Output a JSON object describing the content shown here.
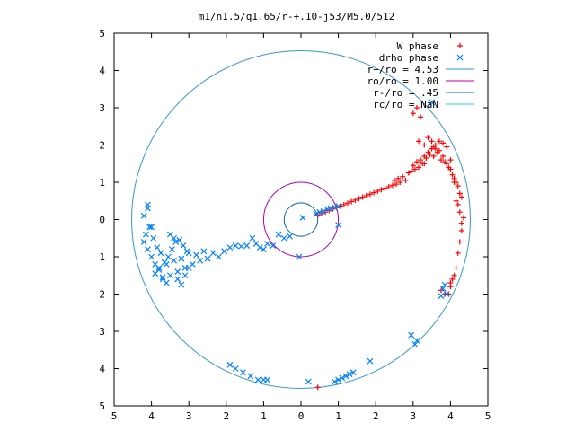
{
  "chart_data": {
    "type": "scatter",
    "title": "m1/n1.5/q1.65/r-+.10-j53/M5.0/512",
    "xlim": [
      -5,
      5
    ],
    "ylim": [
      -5,
      5
    ],
    "x_tick_labels": [
      "5",
      "4",
      "3",
      "2",
      "1",
      "0",
      "1",
      "2",
      "3",
      "4",
      "5"
    ],
    "y_tick_labels": [
      "5",
      "4",
      "3",
      "2",
      "1",
      "0",
      "1",
      "2",
      "3",
      "4",
      "5"
    ],
    "grid": false,
    "legend_position": "top-right",
    "colors": {
      "w_phase": "#ff0000",
      "drho_phase": "#0080ff",
      "r_plus": "#3399cc",
      "ro": "#b000b0",
      "r_minus": "#1060c0",
      "rc": "#33cccc"
    },
    "series": [
      {
        "name": "W phase",
        "marker": "plus",
        "color": "#ff0000",
        "x": [
          0.45,
          0.55,
          0.65,
          0.75,
          0.85,
          0.95,
          1.05,
          1.15,
          1.25,
          1.35,
          1.45,
          1.55,
          1.65,
          1.75,
          1.85,
          1.95,
          2.05,
          2.15,
          2.25,
          2.35,
          2.45,
          2.5,
          2.55,
          2.6,
          2.65,
          2.72,
          2.8,
          2.88,
          2.95,
          3.0,
          3.05,
          3.1,
          3.15,
          3.2,
          3.25,
          3.3,
          3.35,
          3.4,
          3.45,
          3.5,
          3.55,
          3.6,
          3.65,
          3.7,
          3.75,
          3.8,
          3.85,
          3.9,
          3.95,
          4.0,
          4.05,
          4.1,
          4.15,
          4.2,
          4.25,
          4.3,
          3.0,
          3.1,
          3.2,
          3.15,
          3.3,
          3.4,
          3.5,
          3.6,
          3.3,
          3.45,
          3.55,
          3.7,
          3.8,
          3.9,
          4.0,
          4.1,
          4.15,
          4.2,
          4.25,
          4.3,
          4.35,
          4.3,
          4.25,
          4.2,
          4.15,
          4.05,
          4.0,
          3.95,
          3.85,
          3.75,
          4.1,
          4.0,
          0.45
        ],
        "y": [
          0.12,
          0.16,
          0.2,
          0.24,
          0.28,
          0.32,
          0.36,
          0.4,
          0.44,
          0.48,
          0.52,
          0.56,
          0.6,
          0.64,
          0.68,
          0.72,
          0.76,
          0.8,
          0.84,
          0.88,
          0.92,
          1.05,
          0.95,
          1.1,
          1.0,
          1.15,
          1.05,
          1.25,
          1.3,
          1.45,
          1.35,
          1.55,
          1.4,
          1.6,
          1.5,
          1.7,
          1.65,
          1.8,
          1.75,
          1.9,
          1.7,
          2.0,
          1.8,
          1.85,
          1.6,
          1.7,
          1.55,
          1.5,
          1.4,
          1.35,
          1.2,
          1.1,
          1.0,
          0.9,
          0.7,
          0.6,
          2.85,
          3.0,
          2.75,
          2.1,
          2.0,
          2.2,
          2.1,
          1.9,
          1.5,
          1.75,
          1.95,
          2.1,
          2.05,
          1.95,
          1.6,
          1.0,
          0.5,
          0.4,
          0.2,
          -0.1,
          0.05,
          -0.3,
          -0.6,
          -0.9,
          -1.3,
          -1.6,
          -1.8,
          -2.0,
          -2.0,
          -1.9,
          -1.5,
          -1.7,
          -4.5
        ]
      },
      {
        "name": "drho phase",
        "marker": "cross",
        "color": "#0080ff",
        "x": [
          0.4,
          0.5,
          0.6,
          0.7,
          0.8,
          0.9,
          1.0,
          1.0,
          0.05,
          -0.05,
          -0.3,
          -0.45,
          -0.6,
          -0.75,
          -0.9,
          -1.0,
          -1.1,
          -1.2,
          -1.3,
          -1.45,
          -1.6,
          -1.75,
          -1.9,
          -2.05,
          -2.2,
          -2.35,
          -2.5,
          -2.6,
          -2.7,
          -2.8,
          -2.9,
          -3.0,
          -3.1,
          -3.2,
          -3.3,
          -3.4,
          -3.5,
          -3.6,
          -3.7,
          -3.8,
          -3.9,
          -4.0,
          -4.1,
          -4.2,
          -4.15,
          -4.05,
          -3.95,
          -3.85,
          -3.75,
          -3.65,
          -3.55,
          -3.45,
          -3.35,
          -3.25,
          -3.15,
          -3.05,
          -3.3,
          -3.2,
          -3.1,
          -3.0,
          -3.4,
          -3.5,
          -3.6,
          -3.7,
          -3.8,
          -3.9,
          -4.1,
          -4.2,
          -4.1,
          -4.0,
          -1.9,
          -1.75,
          -1.55,
          -1.35,
          -1.15,
          -1.0,
          -0.9,
          0.2,
          0.9,
          1.0,
          1.1,
          1.2,
          1.3,
          1.4,
          1.85,
          2.95,
          3.1,
          3.05,
          3.9,
          3.85,
          3.8,
          3.75,
          3.5
        ],
        "y": [
          0.15,
          0.2,
          0.22,
          0.28,
          0.3,
          0.33,
          0.36,
          -0.15,
          0.05,
          -1.0,
          -0.45,
          -0.5,
          -0.4,
          -0.7,
          -0.65,
          -0.8,
          -0.75,
          -0.65,
          -0.5,
          -0.7,
          -0.72,
          -0.7,
          -0.75,
          -0.85,
          -1.0,
          -0.9,
          -1.05,
          -0.85,
          -1.1,
          -0.95,
          -1.2,
          -0.9,
          -1.3,
          -1.05,
          -1.4,
          -1.1,
          -1.5,
          -1.2,
          -1.6,
          -1.3,
          -1.45,
          -1.0,
          -0.8,
          -0.6,
          -0.4,
          -0.2,
          -0.5,
          -0.75,
          -0.9,
          -1.15,
          -1.0,
          -0.8,
          -0.6,
          -0.55,
          -0.7,
          -0.85,
          -1.6,
          -1.75,
          -1.5,
          -1.3,
          -0.5,
          -0.4,
          -1.7,
          -1.55,
          -1.35,
          -1.2,
          0.4,
          0.1,
          0.3,
          -0.2,
          -3.9,
          -4.0,
          -4.1,
          -4.2,
          -4.3,
          -4.3,
          -4.3,
          -4.35,
          -4.35,
          -4.3,
          -4.25,
          -4.2,
          -4.15,
          -4.1,
          -3.8,
          -3.1,
          -3.25,
          -3.35,
          -2.0,
          -1.75,
          -1.85,
          -2.05,
          3.15
        ]
      }
    ],
    "circles": [
      {
        "name": "r+/ro = 4.53",
        "radius": 4.53,
        "color": "#3399cc"
      },
      {
        "name": "ro/ro = 1.00",
        "radius": 1.0,
        "color": "#b000b0"
      },
      {
        "name": "r-/ro = .45",
        "radius": 0.45,
        "color": "#1060c0"
      },
      {
        "name": "rc/ro = NaN",
        "radius": null,
        "color": "#33cccc"
      }
    ]
  }
}
